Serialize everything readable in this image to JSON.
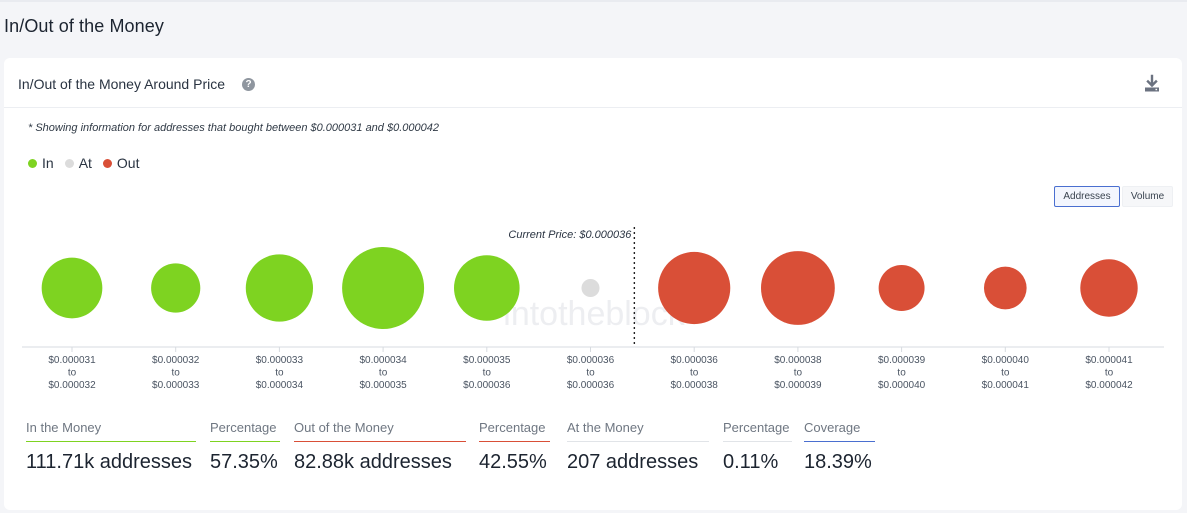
{
  "page_title": "In/Out of the Money",
  "card": {
    "title": "In/Out of the Money Around Price",
    "help_icon": "?",
    "note": "* Showing information for addresses that bought between $0.000031 and $0.000042"
  },
  "legend": [
    {
      "label": "In",
      "color": "#7ed321"
    },
    {
      "label": "At",
      "color": "#dcdcdc"
    },
    {
      "label": "Out",
      "color": "#d94f37"
    }
  ],
  "toggles": {
    "addresses": "Addresses",
    "volume": "Volume",
    "selected": "Addresses"
  },
  "chart_data": {
    "type": "bubble",
    "current_price_label": "Current Price: $0.000036",
    "watermark": "intotheblock",
    "buckets": [
      {
        "from": "$0.000031",
        "to": "$0.000032",
        "status": "in"
      },
      {
        "from": "$0.000032",
        "to": "$0.000033",
        "status": "in"
      },
      {
        "from": "$0.000033",
        "to": "$0.000034",
        "status": "in"
      },
      {
        "from": "$0.000034",
        "to": "$0.000035",
        "status": "in"
      },
      {
        "from": "$0.000035",
        "to": "$0.000036",
        "status": "in"
      },
      {
        "from": "$0.000036",
        "to": "$0.000036",
        "status": "at"
      },
      {
        "from": "$0.000036",
        "to": "$0.000038",
        "status": "out"
      },
      {
        "from": "$0.000038",
        "to": "$0.000039",
        "status": "out"
      },
      {
        "from": "$0.000039",
        "to": "$0.000040",
        "status": "out"
      },
      {
        "from": "$0.000040",
        "to": "$0.000041",
        "status": "out"
      },
      {
        "from": "$0.000041",
        "to": "$0.000042",
        "status": "out"
      }
    ],
    "relative_size": [
      0.74,
      0.6,
      0.82,
      1.0,
      0.8,
      0.22,
      0.88,
      0.9,
      0.56,
      0.52,
      0.7
    ],
    "to_word": "to",
    "colors": {
      "in": "#7ed321",
      "at": "#dcdcdc",
      "out": "#d94f37"
    }
  },
  "stats": [
    {
      "label": "In the Money",
      "value": "111.71k addresses",
      "underline": "#7ed321"
    },
    {
      "label": "Percentage",
      "value": "57.35%",
      "underline": "#7ed321"
    },
    {
      "label": "Out of the Money",
      "value": "82.88k addresses",
      "underline": "#d94f37"
    },
    {
      "label": "Percentage",
      "value": "42.55%",
      "underline": "#d94f37"
    },
    {
      "label": "At the Money",
      "value": "207 addresses",
      "underline": "#e1e4e8"
    },
    {
      "label": "Percentage",
      "value": "0.11%",
      "underline": "#e1e4e8"
    },
    {
      "label": "Coverage",
      "value": "18.39%",
      "underline": "#4a6fd0"
    }
  ]
}
